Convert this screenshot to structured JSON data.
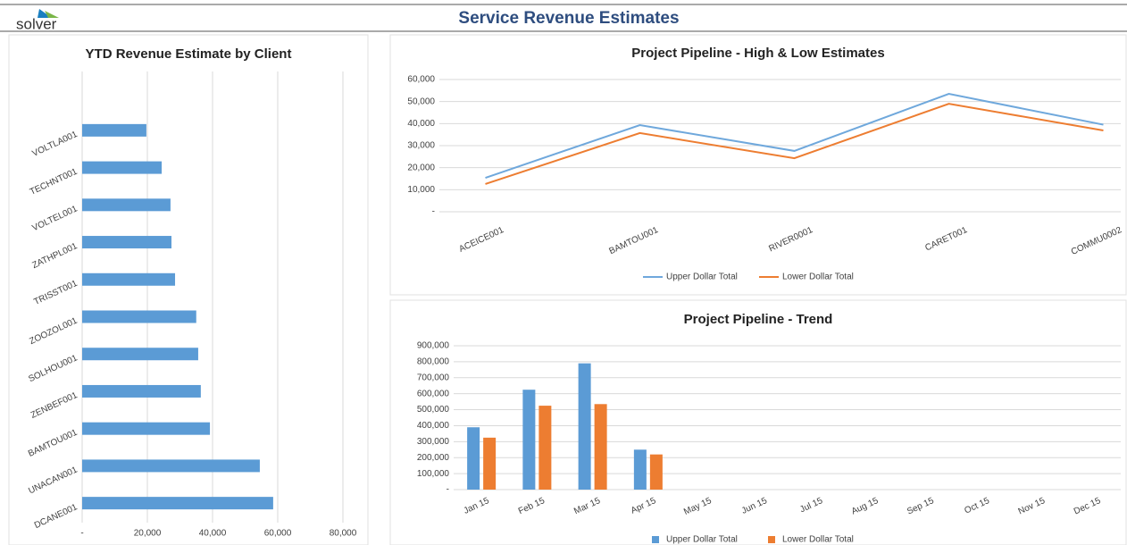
{
  "header": {
    "logo": "solver",
    "title": "Service Revenue Estimates"
  },
  "chart_data": [
    {
      "type": "bar",
      "orientation": "horizontal",
      "title": "YTD Revenue Estimate by Client",
      "categories": [
        "VOLTLA001",
        "TECHNT001",
        "VOLTEL001",
        "ZATHPL001",
        "TRISST001",
        "ZOOZOL001",
        "SOLHOU001",
        "ZENBEF001",
        "BAMTOU001",
        "UNACAN001",
        "DCANE001"
      ],
      "values": [
        19700,
        24400,
        27100,
        27400,
        28500,
        35000,
        35600,
        36400,
        39200,
        54500,
        58600
      ],
      "color": "#5b9bd5",
      "xlim": [
        0,
        80000
      ],
      "xticks": [
        {
          "value": 0,
          "label": "-"
        },
        {
          "value": 20000,
          "label": "20,000"
        },
        {
          "value": 40000,
          "label": "40,000"
        },
        {
          "value": 60000,
          "label": "60,000"
        },
        {
          "value": 80000,
          "label": "80,000"
        }
      ],
      "grid": true
    },
    {
      "type": "line",
      "title": "Project Pipeline - High & Low Estimates",
      "categories": [
        "ACEICE001",
        "BAMTOU001",
        "RIVER0001",
        "CARET001",
        "COMMU0002"
      ],
      "series": [
        {
          "name": "Upper Dollar Total",
          "color": "#6fa8dc",
          "values": [
            15400,
            39300,
            27600,
            53500,
            39500
          ]
        },
        {
          "name": "Lower Dollar Total",
          "color": "#ed7d31",
          "values": [
            12600,
            35700,
            24300,
            49000,
            36900
          ]
        }
      ],
      "ylim": [
        0,
        60000
      ],
      "yticks": [
        {
          "value": 0,
          "label": "-"
        },
        {
          "value": 10000,
          "label": "10,000"
        },
        {
          "value": 20000,
          "label": "20,000"
        },
        {
          "value": 30000,
          "label": "30,000"
        },
        {
          "value": 40000,
          "label": "40,000"
        },
        {
          "value": 50000,
          "label": "50,000"
        },
        {
          "value": 60000,
          "label": "60,000"
        }
      ],
      "grid": true,
      "legend": "bottom"
    },
    {
      "type": "bar",
      "title": "Project Pipeline - Trend",
      "categories": [
        "Jan 15",
        "Feb 15",
        "Mar 15",
        "Apr 15",
        "May 15",
        "Jun 15",
        "Jul 15",
        "Aug 15",
        "Sep 15",
        "Oct 15",
        "Nov 15",
        "Dec 15"
      ],
      "series": [
        {
          "name": "Upper Dollar Total",
          "color": "#5b9bd5",
          "values": [
            390000,
            625000,
            790000,
            250000,
            null,
            null,
            null,
            null,
            null,
            null,
            null,
            null
          ]
        },
        {
          "name": "Lower Dollar Total",
          "color": "#ed7d31",
          "values": [
            325000,
            525000,
            535000,
            220000,
            null,
            null,
            null,
            null,
            null,
            null,
            null,
            null
          ]
        }
      ],
      "ylim": [
        0,
        900000
      ],
      "yticks": [
        {
          "value": 0,
          "label": "-"
        },
        {
          "value": 100000,
          "label": "100,000"
        },
        {
          "value": 200000,
          "label": "200,000"
        },
        {
          "value": 300000,
          "label": "300,000"
        },
        {
          "value": 400000,
          "label": "400,000"
        },
        {
          "value": 500000,
          "label": "500,000"
        },
        {
          "value": 600000,
          "label": "600,000"
        },
        {
          "value": 700000,
          "label": "700,000"
        },
        {
          "value": 800000,
          "label": "800,000"
        },
        {
          "value": 900000,
          "label": "900,000"
        }
      ],
      "grid": true,
      "legend": "bottom"
    }
  ]
}
